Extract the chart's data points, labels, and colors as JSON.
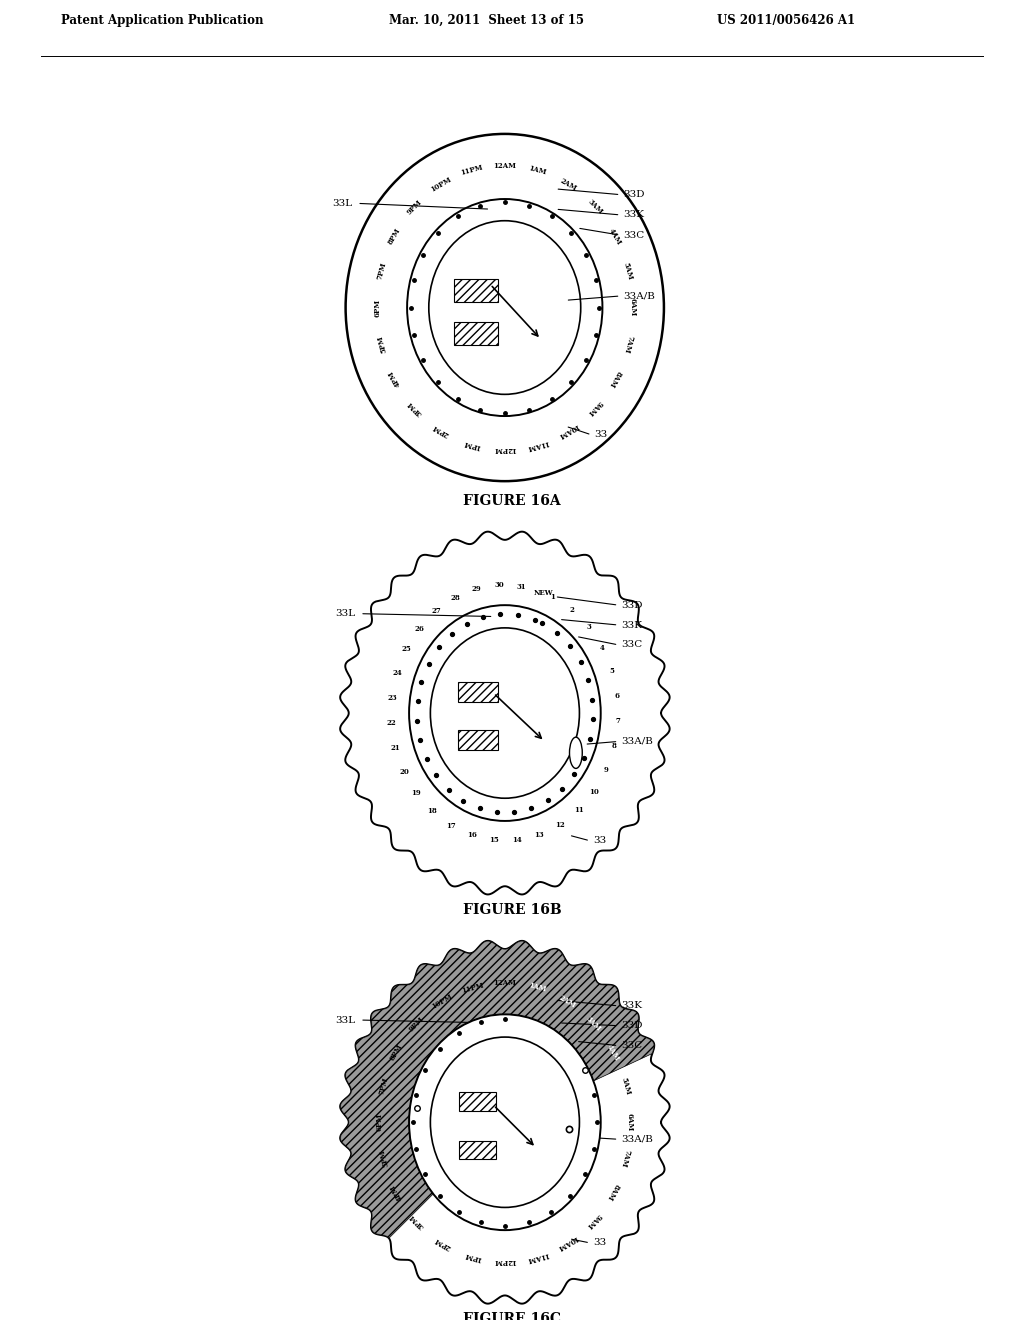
{
  "title_left": "Patent Application Publication",
  "title_mid": "Mar. 10, 2011  Sheet 13 of 15",
  "title_right": "US 2011/0056426 A1",
  "fig_labels": [
    "FIGURE 16A",
    "FIGURE 16B",
    "FIGURE 16C"
  ],
  "fig16a_time_labels": [
    "1AM",
    "2AM",
    "3AM",
    "4AM",
    "5AM",
    "6AM",
    "7AM",
    "8AM",
    "9AM",
    "10AM",
    "11AM",
    "12PM",
    "1PM",
    "2PM",
    "3PM",
    "4PM",
    "5PM",
    "6PM",
    "7PM",
    "8PM",
    "9PM",
    "10PM",
    "11PM",
    "12AM"
  ],
  "fig16b_day_labels": [
    "1",
    "2",
    "3",
    "4",
    "5",
    "6",
    "7",
    "8",
    "9",
    "10",
    "11",
    "12",
    "13",
    "14",
    "15",
    "16",
    "17",
    "18",
    "19",
    "20",
    "21",
    "22",
    "23",
    "24",
    "25",
    "26",
    "27",
    "28",
    "29",
    "30",
    "31",
    "NEW"
  ],
  "bg_color": "#ffffff",
  "line_color": "#000000"
}
